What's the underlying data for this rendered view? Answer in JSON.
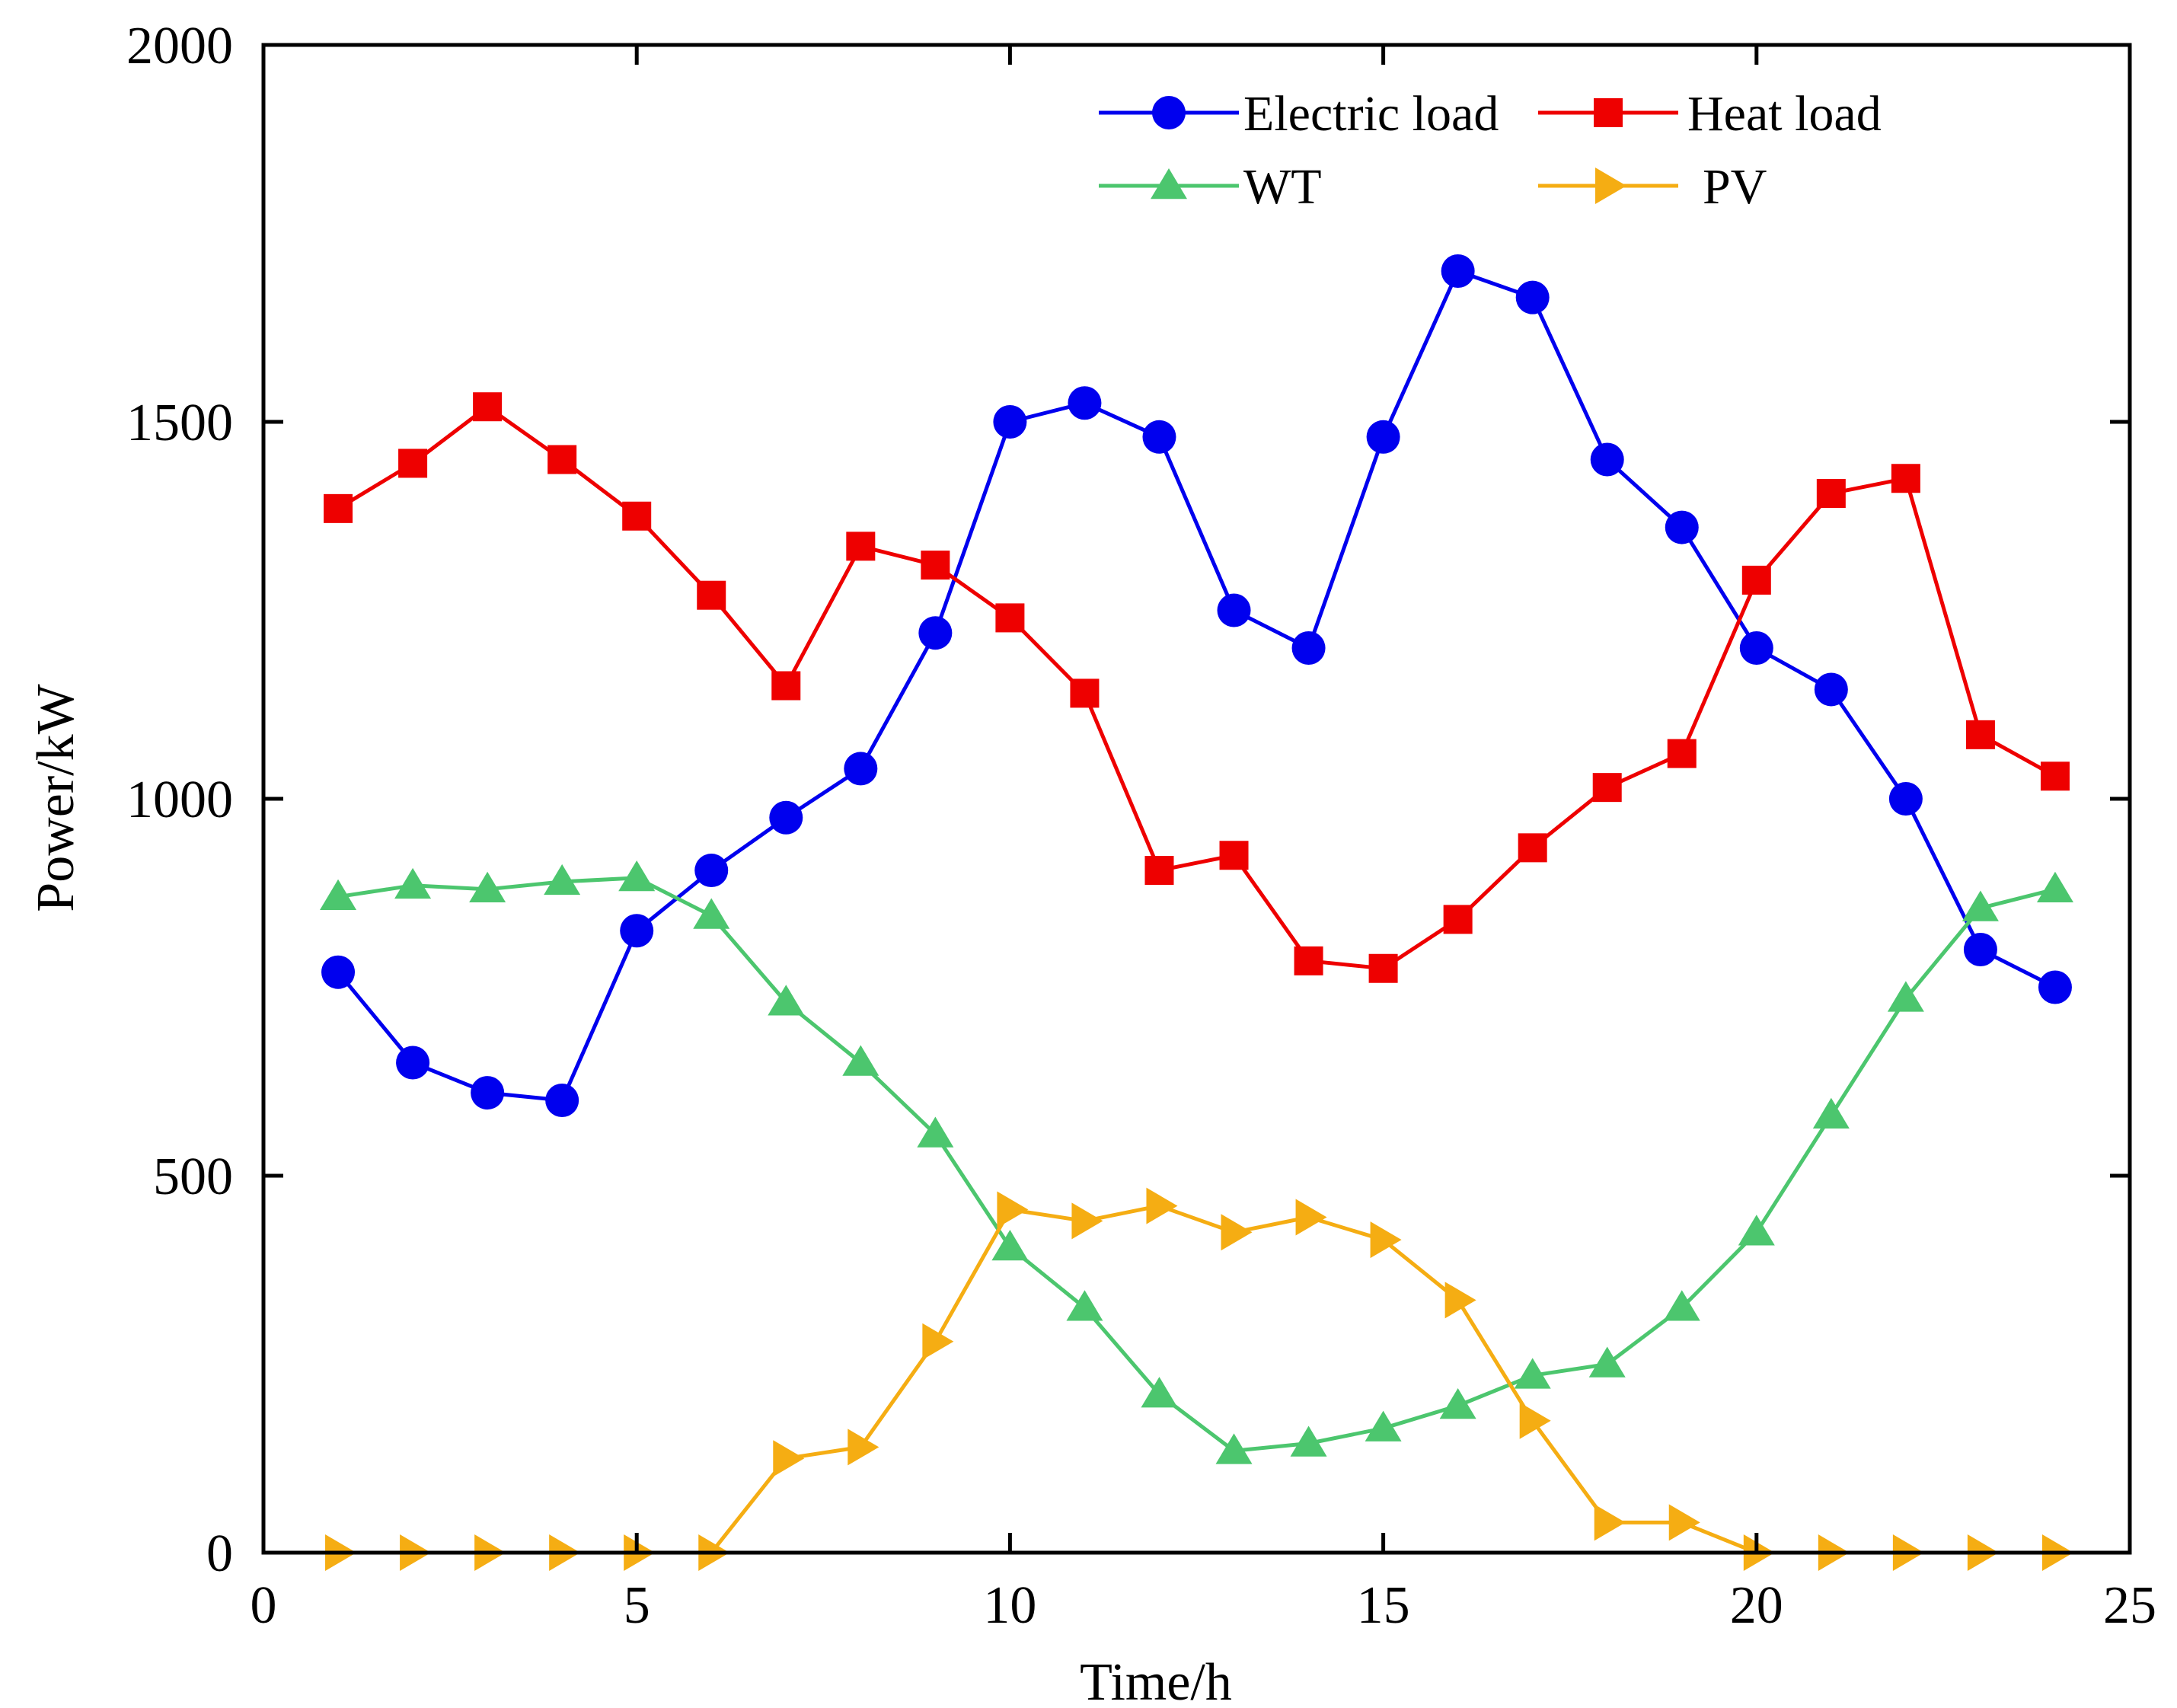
{
  "chart_data": {
    "type": "line",
    "title": "",
    "xlabel": "Time/h",
    "ylabel": "Power/kW",
    "xlim": [
      0,
      25
    ],
    "ylim": [
      0,
      2000
    ],
    "x_ticks": [
      0,
      5,
      10,
      15,
      20,
      25
    ],
    "y_ticks": [
      0,
      500,
      1000,
      1500,
      2000
    ],
    "x_tick_labels": [
      "0",
      "5",
      "10",
      "15",
      "20",
      "25"
    ],
    "y_tick_labels": [
      "0",
      "500",
      "1000",
      "1500",
      "2000"
    ],
    "grid": false,
    "legend_position": "top-right",
    "x": [
      1,
      2,
      3,
      4,
      5,
      6,
      7,
      8,
      9,
      10,
      11,
      12,
      13,
      14,
      15,
      16,
      17,
      18,
      19,
      20,
      21,
      22,
      23,
      24
    ],
    "series": [
      {
        "name": "Electric load",
        "color": "#0000ee",
        "marker": "circle",
        "values": [
          770,
          650,
          610,
          600,
          825,
          905,
          975,
          1040,
          1220,
          1500,
          1525,
          1480,
          1250,
          1200,
          1480,
          1700,
          1665,
          1450,
          1360,
          1200,
          1145,
          1000,
          800,
          750
        ]
      },
      {
        "name": "Heat load",
        "color": "#ee0000",
        "marker": "square",
        "values": [
          1385,
          1445,
          1520,
          1450,
          1375,
          1270,
          1150,
          1335,
          1310,
          1240,
          1140,
          905,
          925,
          785,
          775,
          840,
          935,
          1015,
          1060,
          1290,
          1405,
          1425,
          1085,
          1030
        ]
      },
      {
        "name": "WT",
        "color": "#4cc66e",
        "marker": "triangle-up",
        "values": [
          870,
          885,
          880,
          890,
          895,
          845,
          730,
          650,
          555,
          405,
          325,
          210,
          135,
          145,
          165,
          195,
          235,
          250,
          325,
          425,
          580,
          735,
          855,
          880
        ]
      },
      {
        "name": "PV",
        "color": "#f5ad13",
        "marker": "triangle-right",
        "values": [
          0,
          0,
          0,
          0,
          0,
          0,
          125,
          140,
          280,
          455,
          440,
          460,
          425,
          445,
          415,
          335,
          175,
          40,
          40,
          0,
          0,
          0,
          0,
          0
        ]
      }
    ]
  }
}
